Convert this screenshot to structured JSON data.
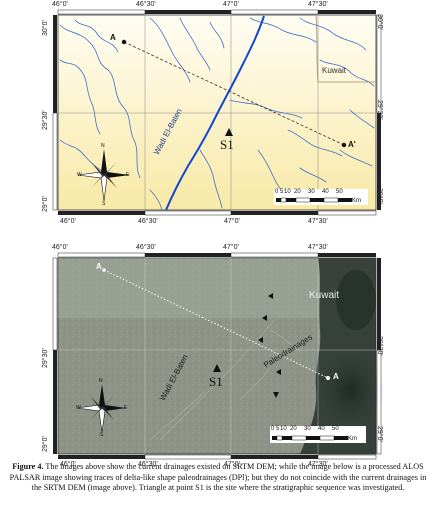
{
  "top_map": {
    "lon_labels": [
      "46°0'",
      "46°30'",
      "47°0'",
      "47°30'"
    ],
    "lat_labels": [
      "30°0'",
      "29°30'",
      "29°0'"
    ],
    "place_labels": {
      "kuwait": "Kuwait",
      "wadi": "Wadi El-Baten",
      "s1": "S1",
      "a": "A",
      "a_prime": "A'"
    },
    "scale_labels": [
      "0",
      "5",
      "10",
      "20",
      "30",
      "40",
      "50"
    ],
    "scale_unit": "Km",
    "compass": {
      "n": "N",
      "s": "S",
      "e": "E",
      "w": "W"
    }
  },
  "bottom_map": {
    "lon_labels": [
      "46°0'",
      "46°30'",
      "47°0'",
      "47°30'"
    ],
    "lat_labels": [
      "29°30'",
      "29°0'"
    ],
    "place_labels": {
      "kuwait": "Kuwait",
      "wadi": "Wadi El-Baten",
      "paleo": "Paleodrainages",
      "s1": "S1",
      "a": "A",
      "a_prime": "A"
    },
    "scale_labels": [
      "0",
      "5",
      "10",
      "20",
      "30",
      "40",
      "50"
    ],
    "scale_unit": "Km",
    "compass": {
      "n": "N",
      "s": "S",
      "e": "E",
      "w": "W"
    }
  },
  "caption": {
    "label": "Figure 4.",
    "text": " The images above show the current drainages existed on SRTM DEM; while the image below is a processed ALOS PALSAR image showing traces of delta-like shape paleodrainages (DPl); but they do not coincide with the current drainages in the SRTM DEM (image above). Triangle at point S1 is the site where the stratigraphic sequence was investigated."
  },
  "colors": {
    "top_bg": "#fbf3c9",
    "top_river": "#2f66c9",
    "main_wadi": "#1446d6",
    "bottom_bg": "#8a9184",
    "bottom_dark": "#27312b"
  }
}
